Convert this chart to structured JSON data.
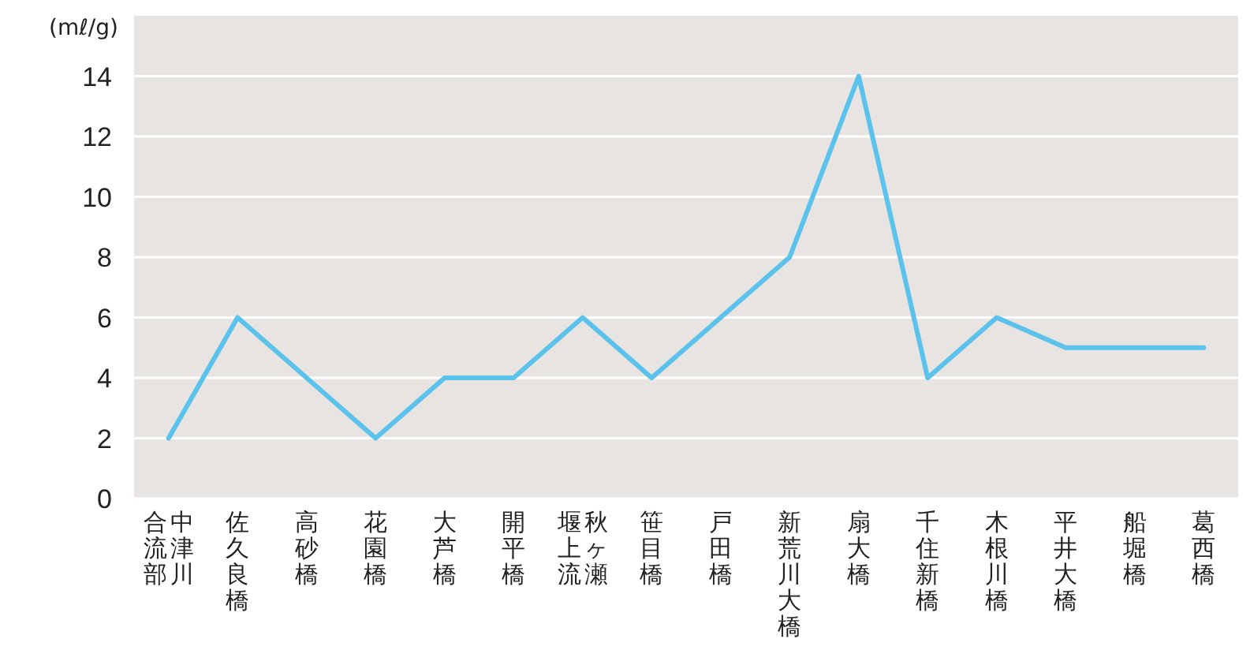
{
  "chart_data": {
    "type": "line",
    "ylabel": "(mℓ/g)",
    "categories": [
      "中津川合流部",
      "佐久良橋",
      "高砂橋",
      "花園橋",
      "大芦橋",
      "開平橋",
      "秋ヶ瀬堰上流",
      "笹目橋",
      "戸田橋",
      "新荒川大橋",
      "扇大橋",
      "千住新橋",
      "木根川橋",
      "平井大橋",
      "船堀橋",
      "葛西橋"
    ],
    "series": [
      {
        "color": "#5bc2ec",
        "values": [
          2,
          6,
          4,
          2,
          4,
          4,
          6,
          4,
          6,
          8,
          14,
          4,
          6,
          5,
          5,
          5
        ]
      }
    ],
    "ylim": [
      0,
      16
    ],
    "yticks": [
      0,
      2,
      4,
      6,
      8,
      10,
      12,
      14
    ],
    "grid": "y",
    "marker": "none",
    "line_style": "solid"
  }
}
